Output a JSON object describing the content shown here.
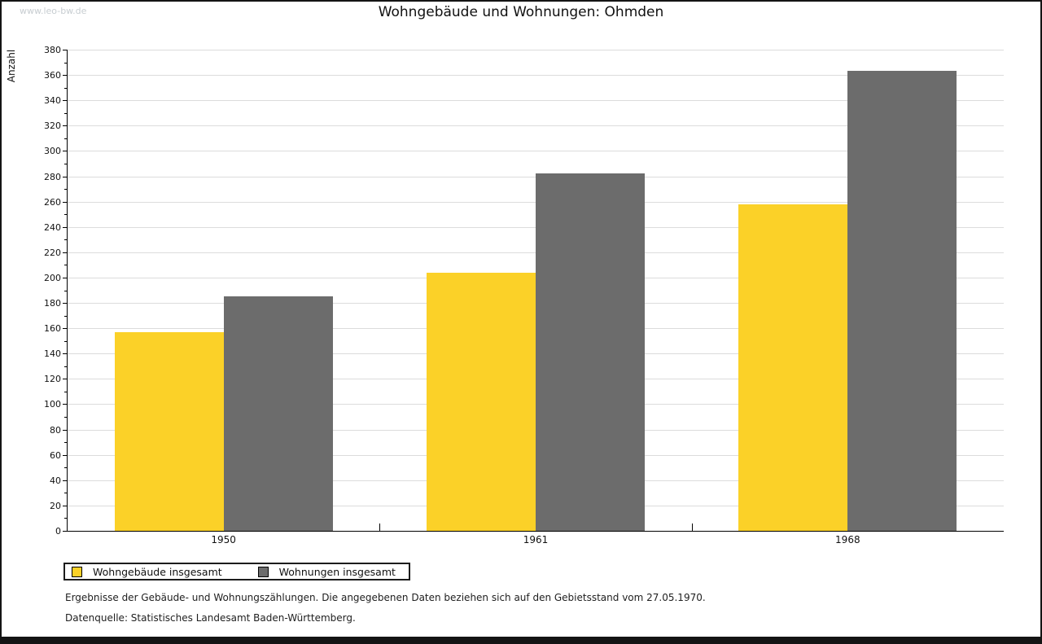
{
  "watermark": "www.leo-bw.de",
  "title": "Wohngebäude und Wohnungen: Ohmden",
  "chart_data": {
    "type": "bar",
    "title": "Wohngebäude und Wohnungen: Ohmden",
    "xlabel": "",
    "ylabel": "Anzahl",
    "categories": [
      "1950",
      "1961",
      "1968"
    ],
    "series": [
      {
        "name": "Wohngebäude insgesamt",
        "color": "#FBD128",
        "values": [
          157,
          204,
          258
        ]
      },
      {
        "name": "Wohnungen insgesamt",
        "color": "#6C6C6C",
        "values": [
          185,
          282,
          363
        ]
      }
    ],
    "ylim": [
      0,
      380
    ],
    "ytick_step": 20,
    "minor_tick_step": 10,
    "grid": true,
    "gridline_color": "#DCDCDC",
    "axis_color": "#000000",
    "legend_position": "bottom-left"
  },
  "footnotes": [
    "Ergebnisse der Gebäude- und Wohnungszählungen. Die angegebenen Daten beziehen sich auf den Gebietsstand vom 27.05.1970.",
    "Datenquelle: Statistisches Landesamt Baden-Württemberg."
  ]
}
